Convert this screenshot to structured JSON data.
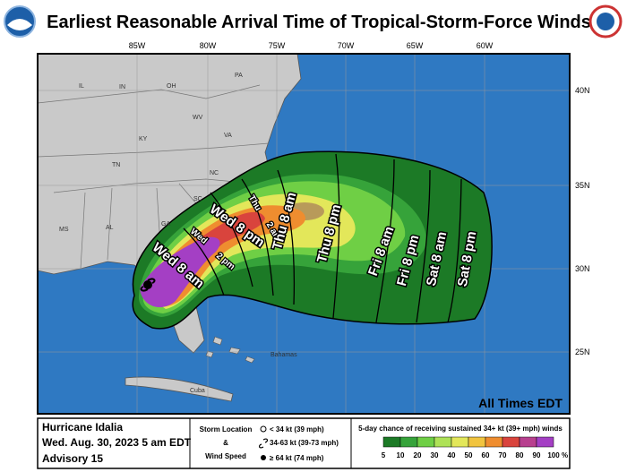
{
  "header": {
    "title": "Earliest Reasonable Arrival Time of Tropical-Storm-Force Winds"
  },
  "map": {
    "lon_labels": [
      "85W",
      "80W",
      "75W",
      "70W",
      "65W",
      "60W"
    ],
    "lat_labels": [
      "40N",
      "35N",
      "30N",
      "25N"
    ],
    "places": [
      "IL",
      "IN",
      "OH",
      "PA",
      "KY",
      "WV",
      "VA",
      "TN",
      "NC",
      "SC",
      "GA",
      "AL",
      "MS",
      "Bahamas",
      "Cuba"
    ],
    "time_labels": [
      "Wed 8 am",
      "Wed",
      "2 pm",
      "Wed 8 pm",
      "Thu",
      "2 am",
      "Thu 8 am",
      "Thu 8 pm",
      "Fri 8 am",
      "Fri 8 pm",
      "Sat 8 am",
      "Sat 8 pm"
    ],
    "note": "All Times EDT"
  },
  "footer": {
    "storm": "Hurricane Idalia",
    "date": "Wed. Aug. 30, 2023 5 am EDT",
    "advisory": "Advisory 15",
    "legend_title_1": "Storm Location",
    "legend_amp": "&",
    "legend_title_2": "Wind Speed",
    "symbols": [
      "< 34 kt (39 mph)",
      "34-63 kt (39-73 mph)",
      "≥ 64 kt (74 mph)"
    ],
    "scale_title": "5-day chance of receiving sustained 34+ kt (39+ mph) winds",
    "scale": {
      "values": [
        5,
        10,
        20,
        30,
        40,
        50,
        60,
        70,
        80,
        90,
        100
      ],
      "colors": [
        "#1c7a26",
        "#36a33a",
        "#6fcf45",
        "#aee257",
        "#e3e75a",
        "#f1c43f",
        "#ef8d2f",
        "#d9443d",
        "#b8408f",
        "#a43fc4"
      ],
      "unit": "%"
    }
  }
}
